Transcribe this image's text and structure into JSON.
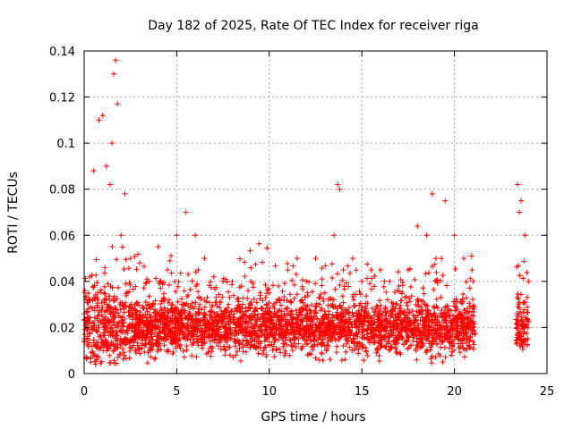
{
  "chart_data": {
    "type": "scatter",
    "title": "Day 182 of 2025, Rate Of TEC Index for receiver riga",
    "xlabel": "GPS time / hours",
    "ylabel": "ROTI / TECUs",
    "xlim": [
      0,
      25
    ],
    "ylim": [
      0,
      0.14
    ],
    "xticks": [
      0,
      5,
      10,
      15,
      20,
      25
    ],
    "xtick_labels": [
      "0",
      "5",
      "10",
      "15",
      "20",
      "25"
    ],
    "yticks": [
      0,
      0.02,
      0.04,
      0.06,
      0.08,
      0.1,
      0.12,
      0.14
    ],
    "ytick_labels": [
      "0",
      "0.02",
      "0.04",
      "0.06",
      "0.08",
      "0.1",
      "0.12",
      "0.14"
    ],
    "grid": true,
    "marker": "+",
    "color": "#ff0000",
    "data_gap_hours": [
      21.1,
      23.3
    ],
    "series": [
      {
        "name": "ROTI",
        "x": [
          0.1,
          0.3,
          0.5,
          0.8,
          1.0,
          1.2,
          1.4,
          1.5,
          1.6,
          1.7,
          1.8,
          2.0,
          2.2,
          2.5,
          3.0,
          3.5,
          4.0,
          4.5,
          5.0,
          5.5,
          6.0,
          6.5,
          7.0,
          7.5,
          8.0,
          8.5,
          9.0,
          9.5,
          10.0,
          10.5,
          11.0,
          11.5,
          12.0,
          12.5,
          13.0,
          13.5,
          13.7,
          13.8,
          14.0,
          14.5,
          15.0,
          15.5,
          16.0,
          16.5,
          17.0,
          17.5,
          18.0,
          18.5,
          18.8,
          19.0,
          19.3,
          19.5,
          20.0,
          20.5,
          21.0,
          23.4,
          23.5,
          23.6,
          23.8,
          24.0
        ],
        "y": [
          0.032,
          0.042,
          0.088,
          0.11,
          0.112,
          0.09,
          0.082,
          0.1,
          0.13,
          0.136,
          0.117,
          0.06,
          0.078,
          0.05,
          0.048,
          0.04,
          0.055,
          0.045,
          0.06,
          0.07,
          0.06,
          0.05,
          0.042,
          0.04,
          0.04,
          0.038,
          0.04,
          0.035,
          0.035,
          0.038,
          0.045,
          0.05,
          0.04,
          0.05,
          0.035,
          0.06,
          0.082,
          0.08,
          0.045,
          0.05,
          0.04,
          0.045,
          0.045,
          0.04,
          0.038,
          0.045,
          0.064,
          0.06,
          0.078,
          0.05,
          0.05,
          0.075,
          0.06,
          0.05,
          0.04,
          0.082,
          0.07,
          0.075,
          0.06,
          0.04
        ]
      }
    ]
  }
}
